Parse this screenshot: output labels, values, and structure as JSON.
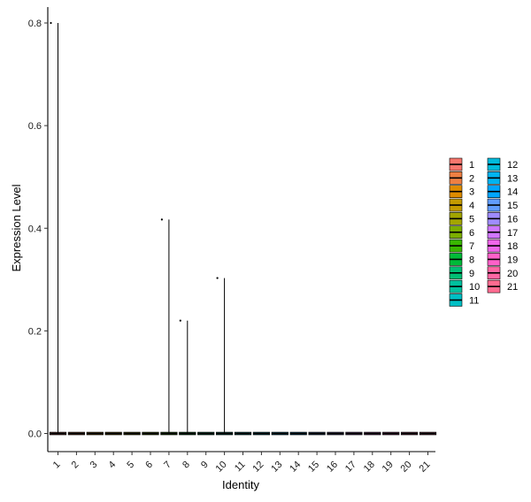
{
  "chart_data": {
    "type": "violin",
    "xlabel": "Identity",
    "ylabel": "Expression Level",
    "categories": [
      "1",
      "2",
      "3",
      "4",
      "5",
      "6",
      "7",
      "8",
      "9",
      "10",
      "11",
      "12",
      "13",
      "14",
      "15",
      "16",
      "17",
      "18",
      "19",
      "20",
      "21"
    ],
    "ylim": [
      -0.04,
      0.84
    ],
    "yticks": [
      0.0,
      0.2,
      0.4,
      0.6,
      0.8
    ],
    "ytick_labels": [
      "0.0",
      "0.2",
      "0.4",
      "0.6",
      "0.8"
    ],
    "max_values": [
      0.8,
      0,
      0,
      0,
      0,
      0,
      0.417,
      0.22,
      0,
      0.303,
      0,
      0,
      0,
      0,
      0,
      0,
      0,
      0,
      0,
      0,
      0
    ],
    "colors": [
      "#F8766D",
      "#EE8043",
      "#DE8C00",
      "#C49A00",
      "#A3A500",
      "#7CAE00",
      "#39B600",
      "#00BA38",
      "#00BF74",
      "#00C19F",
      "#00BFC4",
      "#00BBDC",
      "#00B4F0",
      "#00A5FF",
      "#619CFF",
      "#9F8CFF",
      "#D177FF",
      "#F066EA",
      "#FF61C9",
      "#FF67A4",
      "#FF6C91"
    ],
    "grid": false,
    "legend": {
      "position": "right",
      "labels": [
        "1",
        "2",
        "3",
        "4",
        "5",
        "6",
        "7",
        "8",
        "9",
        "10",
        "11",
        "12",
        "13",
        "14",
        "15",
        "16",
        "17",
        "18",
        "19",
        "20",
        "21"
      ]
    }
  }
}
